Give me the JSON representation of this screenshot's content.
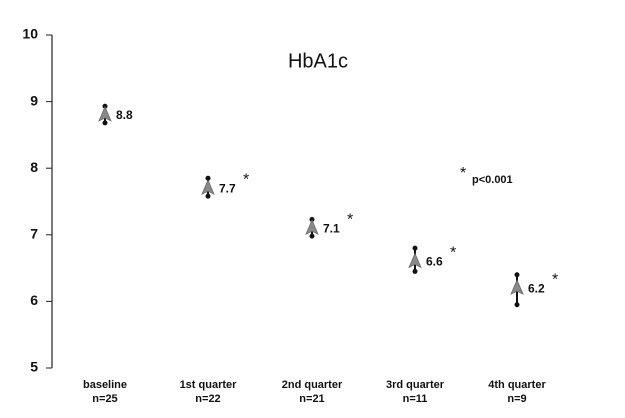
{
  "chart_data": {
    "type": "errorpoint",
    "title": "HbA1c",
    "categories": [
      "baseline",
      "1st quarter",
      "2nd quarter",
      "3rd quarter",
      "4th quarter"
    ],
    "n_labels": [
      "n=25",
      "n=22",
      "n=21",
      "n=11",
      "n=9"
    ],
    "values": [
      8.8,
      7.7,
      7.1,
      6.6,
      6.2
    ],
    "lower": [
      8.68,
      7.58,
      6.98,
      6.45,
      5.95
    ],
    "upper": [
      8.93,
      7.85,
      7.23,
      6.8,
      6.4
    ],
    "significance": [
      null,
      "*",
      "*",
      "*",
      "*"
    ],
    "annotation_symbol": "*",
    "annotation": "p<0.001",
    "color": "#8a8a8a",
    "ylim": [
      5,
      10
    ],
    "yticks": [
      5,
      6,
      7,
      8,
      9,
      10
    ]
  }
}
